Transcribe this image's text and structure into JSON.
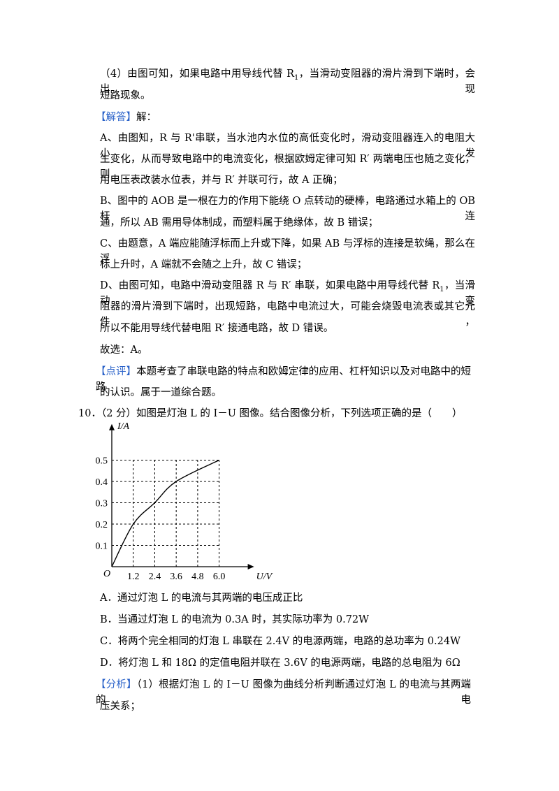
{
  "lines": [
    [
      "（4）由图可知，如果电路中用导线代替 R",
      {
        "text": "1",
        "sub": true
      },
      "，当滑动变阻器的滑片滑到下端时，会出现"
    ],
    [
      "短路现象。"
    ],
    [
      {
        "text": "【解答】",
        "tag": true
      },
      "解："
    ],
    [
      "A、由图知，R 与 R'串联，当水池内水位的高低变化时，滑动变阻器连入的电阻大小发"
    ],
    [
      "生变化，从而导致电路中的电流变化，根据欧姆定律可知 R′ 两端电压也随之变化，则"
    ],
    [
      "用电压表改装水位表，并与 R′ 并联可行，故 A 正确；"
    ],
    [
      "B、图中的 AOB 是一根在力的作用下能绕 O 点转动的硬棒，电路通过水箱上的 OB 杆连"
    ],
    [
      "通，所以 AB 需用导体制成，而塑料属于绝缘体，故 B 错误；"
    ],
    [
      "C、由题意，A 端应能随浮标而上升或下降，如果 AB 与浮标的连接是软绳，那么在浮"
    ],
    [
      "标上升时，A 端就不会随之上升，故 C 错误；"
    ],
    [
      "D、由图可知，电路中滑动变阻器 R 与 R′ 串联，如果电路中用导线代替 R",
      {
        "text": "1",
        "sub": true
      },
      "，当滑动变"
    ],
    [
      "阻器的滑片滑到下端时，出现短路，电路中电流过大，可能会烧毁电流表或其它元件，"
    ],
    [
      "所以不能用导线代替电阻 R′ 接通电路，故 D 错误。"
    ],
    [
      "故选：A。"
    ],
    [
      {
        "text": "【点评】",
        "tag": true
      },
      "本题考查了串联电路的特点和欧姆定律的应用、杠杆知识以及对电路中的短路"
    ],
    [
      "的认识。属于一道综合题。"
    ],
    [
      "10．（2 分）如图是灯泡 L 的 I－U 图像。结合图像分析，下列选项正确的是（　　）"
    ],
    [
      "A．通过灯泡 L 的电流与其两端的电压成正比"
    ],
    [
      "B．当通过灯泡 L 的电流为 0.3A 时，其实际功率为 0.72W"
    ],
    [
      "C．将两个完全相同的灯泡 L 串联在 2.4V 的电源两端，电路的总功率为 0.24W"
    ],
    [
      "D．将灯泡 L 和 18Ω 的定值电阻并联在 3.6V 的电源两端，电路的总电阻为 6Ω"
    ],
    [
      {
        "text": "【分析】",
        "tag": true
      },
      "（1）根据灯泡 L 的 I－U 图像为曲线分析判断通过灯泡 L 的电流与其两端的电"
    ],
    [
      "压关系；"
    ]
  ],
  "chart_data": {
    "type": "line",
    "x_label": "U/V",
    "y_label": "I/A",
    "origin_label": "O",
    "x": [
      0,
      1.2,
      2.4,
      3.6,
      6.0
    ],
    "values": [
      0,
      0.2,
      0.3,
      0.4,
      0.5
    ],
    "color": "#000000",
    "xlim": [
      0,
      7.6
    ],
    "ylim": [
      0,
      0.64
    ],
    "xticks": [
      1.2,
      2.4,
      3.6,
      4.8,
      {
        "value": 6,
        "label": "6.0"
      }
    ],
    "yticks": [
      0.1,
      0.2,
      0.3,
      0.4,
      0.5
    ],
    "grid": true
  }
}
